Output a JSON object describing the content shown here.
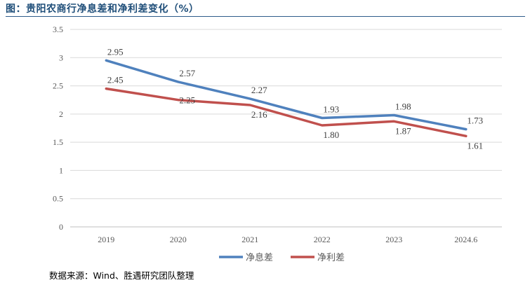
{
  "header": {
    "title": "图：贵阳农商行净息差和净利差变化（%）",
    "source": "数据来源：Wind、胜遇研究团队整理"
  },
  "chart_data": {
    "type": "line",
    "title": "图：贵阳农商行净息差和净利差变化（%）",
    "categories": [
      "2019",
      "2020",
      "2021",
      "2022",
      "2023",
      "2024.6"
    ],
    "y_ticks": [
      "0",
      "0.5",
      "1",
      "1.5",
      "2",
      "2.5",
      "3",
      "3.5"
    ],
    "ylim": [
      0,
      3.5
    ],
    "grid": true,
    "legend_position": "bottom",
    "series": [
      {
        "name": "净息差",
        "color": "#4f81bd",
        "values": [
          2.95,
          2.57,
          2.27,
          1.93,
          1.98,
          1.73
        ],
        "labels": [
          "2.95",
          "2.57",
          "2.27",
          "1.93",
          "1.98",
          "1.73"
        ],
        "label_side": [
          "above",
          "above",
          "above",
          "above",
          "above",
          "above"
        ]
      },
      {
        "name": "净利差",
        "color": "#c0504d",
        "values": [
          2.45,
          2.25,
          2.16,
          1.8,
          1.87,
          1.61
        ],
        "labels": [
          "2.45",
          "2.25",
          "2.16",
          "1.80",
          "1.87",
          "1.61"
        ],
        "label_side": [
          "above",
          "on",
          "below",
          "below",
          "below",
          "below"
        ]
      }
    ]
  }
}
